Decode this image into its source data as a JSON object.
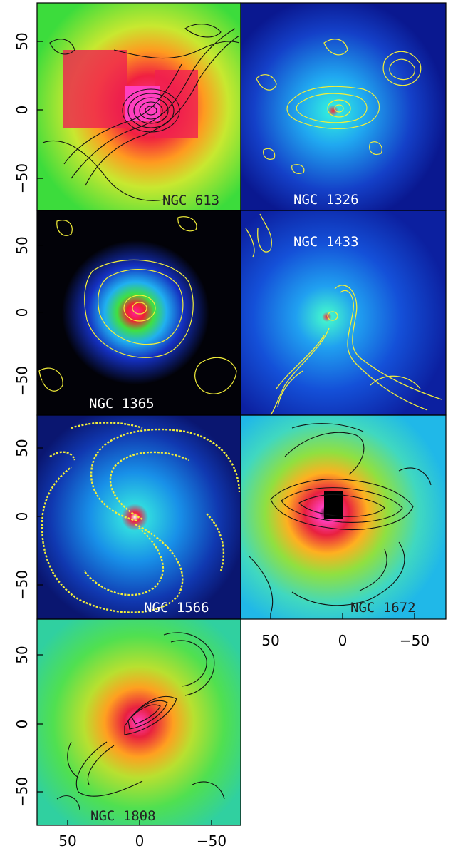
{
  "figure": {
    "panel_titles": [
      "NGC 613",
      "NGC 1326",
      "NGC 1365",
      "NGC 1433",
      "NGC 1566",
      "NGC 1672",
      "NGC 1808"
    ],
    "title_colors": [
      "#222222",
      "#ffffff",
      "#ffffff",
      "#ffffff",
      "#ffffff",
      "#222222",
      "#222222"
    ],
    "contour_colors": [
      "#111111",
      "#f2ee3a",
      "#f2ee3a",
      "#f2ee3a",
      "#f2ee3a",
      "#111111",
      "#111111"
    ],
    "left_axis_ticks": [
      "50",
      "0",
      "−50"
    ],
    "bottom_axis_ticks": [
      "50",
      "0",
      "−50"
    ]
  }
}
